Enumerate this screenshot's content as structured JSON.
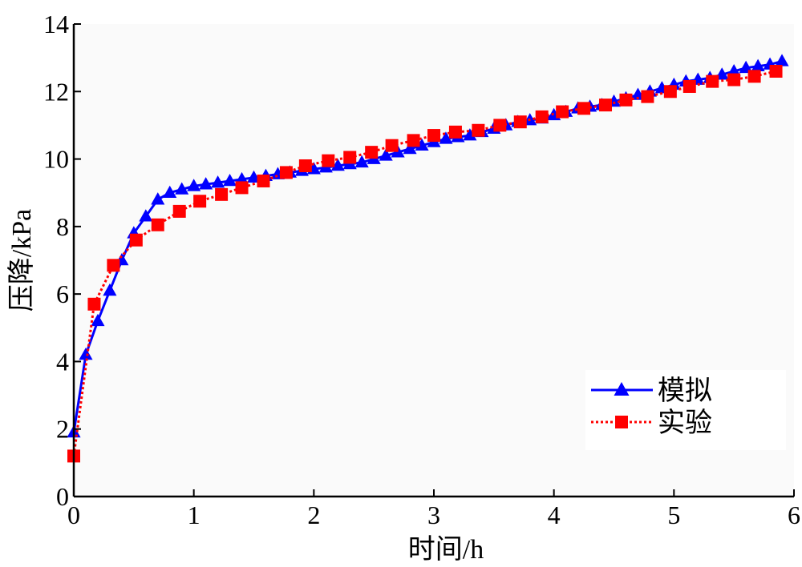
{
  "chart_data": {
    "type": "line",
    "title": "",
    "xlabel": "时间/h",
    "ylabel": "压降/kPa",
    "xlim": [
      0,
      6
    ],
    "ylim": [
      0,
      14
    ],
    "xticks": [
      0,
      1,
      2,
      3,
      4,
      5,
      6
    ],
    "yticks": [
      0,
      2,
      4,
      6,
      8,
      10,
      12,
      14
    ],
    "grid": false,
    "legend_position": "lower-right",
    "series": [
      {
        "name": "模拟",
        "color": "#0000ff",
        "line_style": "solid",
        "marker": "triangle",
        "x": [
          0.0,
          0.1,
          0.2,
          0.3,
          0.4,
          0.5,
          0.6,
          0.7,
          0.8,
          0.9,
          1.0,
          1.1,
          1.2,
          1.3,
          1.4,
          1.5,
          1.6,
          1.7,
          1.8,
          1.9,
          2.0,
          2.1,
          2.2,
          2.3,
          2.4,
          2.5,
          2.6,
          2.7,
          2.8,
          2.9,
          3.0,
          3.1,
          3.2,
          3.3,
          3.4,
          3.5,
          3.6,
          3.7,
          3.8,
          3.9,
          4.0,
          4.1,
          4.2,
          4.3,
          4.4,
          4.5,
          4.6,
          4.7,
          4.8,
          4.9,
          5.0,
          5.1,
          5.2,
          5.3,
          5.4,
          5.5,
          5.6,
          5.7,
          5.8,
          5.9
        ],
        "y": [
          1.9,
          4.2,
          5.2,
          6.1,
          7.0,
          7.8,
          8.3,
          8.8,
          9.0,
          9.1,
          9.2,
          9.25,
          9.3,
          9.35,
          9.4,
          9.45,
          9.5,
          9.55,
          9.6,
          9.65,
          9.7,
          9.75,
          9.8,
          9.85,
          9.9,
          10.0,
          10.1,
          10.2,
          10.3,
          10.4,
          10.5,
          10.6,
          10.65,
          10.7,
          10.8,
          10.9,
          11.0,
          11.1,
          11.15,
          11.2,
          11.3,
          11.4,
          11.5,
          11.55,
          11.6,
          11.7,
          11.8,
          11.9,
          12.0,
          12.1,
          12.2,
          12.3,
          12.35,
          12.4,
          12.5,
          12.6,
          12.7,
          12.75,
          12.8,
          12.9
        ]
      },
      {
        "name": "实验",
        "color": "#ff0000",
        "line_style": "dotted",
        "marker": "square",
        "x": [
          0.0,
          0.17,
          0.33,
          0.52,
          0.7,
          0.88,
          1.05,
          1.23,
          1.4,
          1.58,
          1.77,
          1.93,
          2.12,
          2.3,
          2.48,
          2.65,
          2.83,
          3.0,
          3.18,
          3.37,
          3.55,
          3.72,
          3.9,
          4.07,
          4.25,
          4.43,
          4.6,
          4.78,
          4.97,
          5.13,
          5.32,
          5.5,
          5.67,
          5.85
        ],
        "y": [
          1.2,
          5.7,
          6.85,
          7.6,
          8.05,
          8.45,
          8.75,
          8.95,
          9.15,
          9.35,
          9.6,
          9.8,
          9.95,
          10.05,
          10.2,
          10.4,
          10.55,
          10.7,
          10.8,
          10.85,
          11.0,
          11.1,
          11.25,
          11.4,
          11.5,
          11.6,
          11.75,
          11.85,
          12.0,
          12.15,
          12.3,
          12.35,
          12.45,
          12.6
        ]
      }
    ]
  }
}
